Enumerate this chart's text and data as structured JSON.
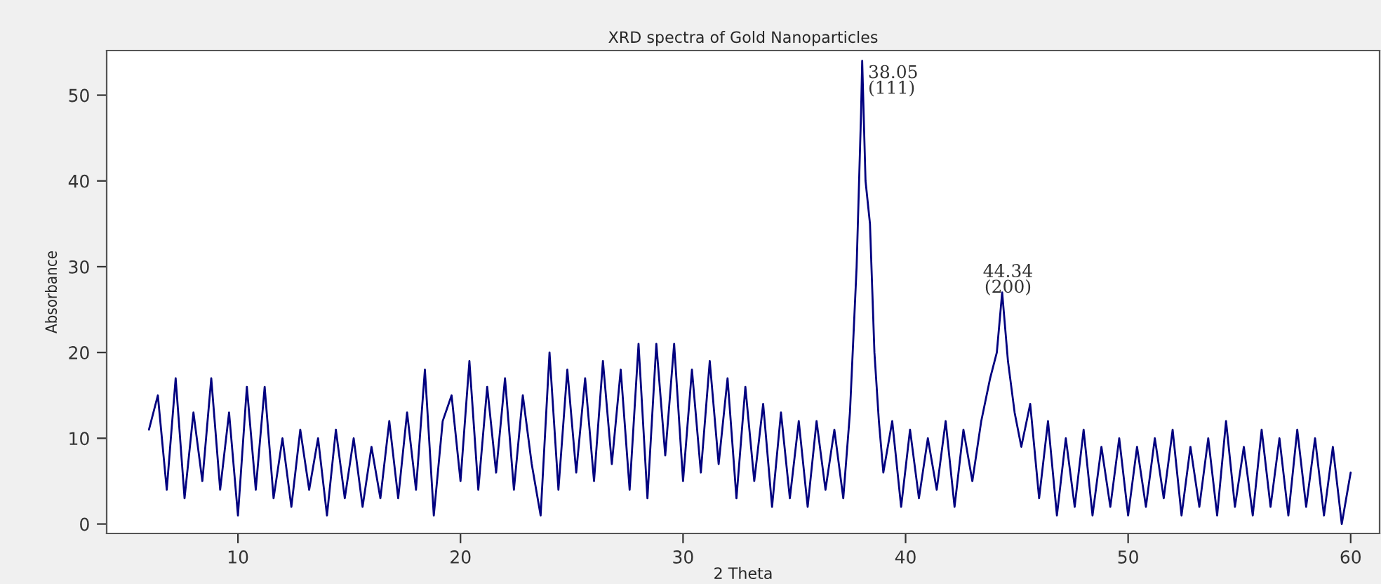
{
  "chart_data": {
    "type": "line",
    "title": "XRD spectra of Gold Nanoparticles",
    "xlabel": "2 Theta",
    "ylabel": "Absorbance",
    "xlim": [
      4.1,
      61.3
    ],
    "ylim": [
      -1.1,
      55.2
    ],
    "xticks": [
      10,
      20,
      30,
      40,
      50,
      60
    ],
    "yticks": [
      0,
      10,
      20,
      30,
      40,
      50
    ],
    "grid": false,
    "marker": "none",
    "line_style": "solid",
    "annotations": [
      {
        "text": "38.05\n(111)",
        "x": 38.05,
        "y": 54
      },
      {
        "text": "44.34\n(200)",
        "x": 44.34,
        "y": 27
      }
    ],
    "series": [
      {
        "color": "#00007f",
        "x": [
          6.0,
          6.4,
          6.8,
          7.2,
          7.6,
          8.0,
          8.4,
          8.8,
          9.2,
          9.6,
          10.0,
          10.4,
          10.8,
          11.2,
          11.6,
          12.0,
          12.4,
          12.8,
          13.2,
          13.6,
          14.0,
          14.4,
          14.8,
          15.2,
          15.6,
          16.0,
          16.4,
          16.8,
          17.2,
          17.6,
          18.0,
          18.4,
          18.8,
          19.2,
          19.6,
          20.0,
          20.4,
          20.8,
          21.2,
          21.6,
          22.0,
          22.4,
          22.8,
          23.2,
          23.6,
          24.0,
          24.4,
          24.8,
          25.2,
          25.6,
          26.0,
          26.4,
          26.8,
          27.2,
          27.6,
          28.0,
          28.4,
          28.8,
          29.2,
          29.6,
          30.0,
          30.4,
          30.8,
          31.2,
          31.6,
          32.0,
          32.4,
          32.8,
          33.2,
          33.6,
          34.0,
          34.4,
          34.8,
          35.2,
          35.6,
          36.0,
          36.4,
          36.8,
          37.2,
          37.5,
          37.8,
          38.0,
          38.05,
          38.2,
          38.4,
          38.6,
          38.8,
          39.0,
          39.4,
          39.8,
          40.2,
          40.6,
          41.0,
          41.4,
          41.8,
          42.2,
          42.6,
          43.0,
          43.4,
          43.8,
          44.1,
          44.34,
          44.6,
          44.9,
          45.2,
          45.6,
          46.0,
          46.4,
          46.8,
          47.2,
          47.6,
          48.0,
          48.4,
          48.8,
          49.2,
          49.6,
          50.0,
          50.4,
          50.8,
          51.2,
          51.6,
          52.0,
          52.4,
          52.8,
          53.2,
          53.6,
          54.0,
          54.4,
          54.8,
          55.2,
          55.6,
          56.0,
          56.4,
          56.8,
          57.2,
          57.6,
          58.0,
          58.4,
          58.8,
          59.2,
          59.6,
          60.0
        ],
        "values": [
          11,
          15,
          4,
          17,
          3,
          13,
          5,
          17,
          4,
          13,
          1,
          16,
          4,
          16,
          3,
          10,
          2,
          11,
          4,
          10,
          1,
          11,
          3,
          10,
          2,
          9,
          3,
          12,
          3,
          13,
          4,
          18,
          1,
          12,
          15,
          5,
          19,
          4,
          16,
          6,
          17,
          4,
          15,
          7,
          1,
          20,
          4,
          18,
          6,
          17,
          5,
          19,
          7,
          18,
          4,
          21,
          3,
          21,
          8,
          21,
          5,
          18,
          6,
          19,
          7,
          17,
          3,
          16,
          5,
          14,
          2,
          13,
          3,
          12,
          2,
          12,
          4,
          11,
          3,
          13,
          30,
          48,
          54,
          40,
          35,
          20,
          12,
          6,
          12,
          2,
          11,
          3,
          10,
          4,
          12,
          2,
          11,
          5,
          12,
          17,
          20,
          27,
          19,
          13,
          9,
          14,
          3,
          12,
          1,
          10,
          2,
          11,
          1,
          9,
          2,
          10,
          1,
          9,
          2,
          10,
          3,
          11,
          1,
          9,
          2,
          10,
          1,
          12,
          2,
          9,
          1,
          11,
          2,
          10,
          1,
          11,
          2,
          10,
          1,
          9,
          0,
          6
        ]
      }
    ]
  }
}
